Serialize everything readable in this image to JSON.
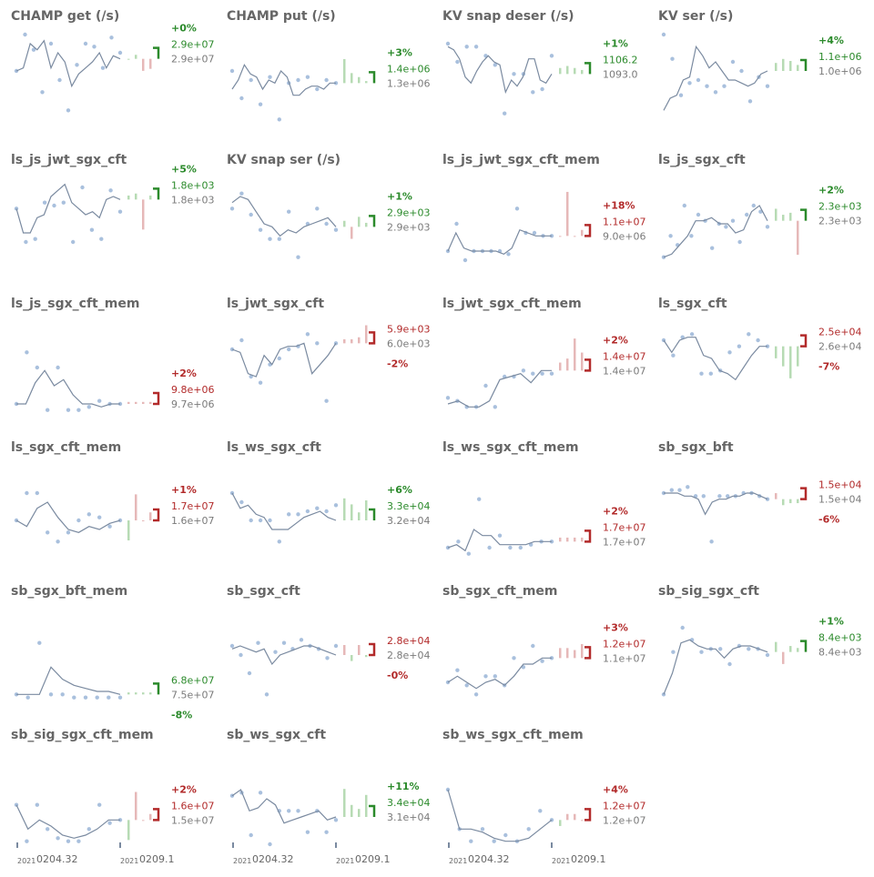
{
  "colors": {
    "title": "#666666",
    "line": "#7a8aa0",
    "dot": "#a9c0dd",
    "up": "#2b8a2b",
    "up_light": "#b7dbb4",
    "down": "#b22a2a",
    "down_light": "#e6b8b8",
    "neutral": "#7a7a7a"
  },
  "x_axis": {
    "start": {
      "year": "2021",
      "label": "0204.32"
    },
    "end": {
      "year": "2021",
      "label": "0209.1"
    }
  },
  "chart_data": [
    {
      "type": "line",
      "title": "CHAMP get (/s)",
      "direction": "up",
      "change": "+0%",
      "values": [
        18,
        19,
        27,
        25,
        28,
        19,
        24,
        21,
        13,
        17,
        19,
        21,
        24,
        19,
        23,
        22
      ],
      "dots": [
        18,
        30,
        25,
        11,
        27,
        15,
        5,
        20,
        27,
        26,
        19,
        29,
        24
      ],
      "bars": [
        0,
        2,
        -6,
        -5
      ],
      "ref_label": "2.9e+07",
      "cur_label": "2.9e+07"
    },
    {
      "type": "line",
      "title": "CHAMP put (/s)",
      "direction": "up",
      "change": "+3%",
      "values": [
        12,
        15,
        20,
        17,
        16,
        12,
        15,
        14,
        18,
        16,
        10,
        10,
        12,
        13,
        13,
        12,
        14,
        14
      ],
      "dots": [
        18,
        9,
        15,
        7,
        16,
        2,
        14,
        15,
        16,
        12,
        15,
        14
      ],
      "bars": [
        12,
        5,
        3,
        1
      ],
      "ref_label": "1.3e+06",
      "cur_label": "1.4e+06"
    },
    {
      "type": "line",
      "title": "KV snap deser (/s)",
      "direction": "up",
      "change": "+1%",
      "values": [
        26,
        25,
        22,
        16,
        14,
        18,
        21,
        23,
        21,
        20,
        11,
        15,
        13,
        16,
        22,
        22,
        15,
        14,
        17
      ],
      "dots": [
        27,
        21,
        26,
        26,
        23,
        20,
        4,
        17,
        17,
        11,
        12,
        23
      ],
      "bars": [
        3,
        4,
        3,
        2
      ],
      "ref_label": "1093.0",
      "cur_label": "1106.2"
    },
    {
      "type": "line",
      "title": "KV ser (/s)",
      "direction": "up",
      "change": "+4%",
      "values": [
        5,
        9,
        10,
        15,
        16,
        26,
        23,
        19,
        21,
        18,
        15,
        15,
        14,
        13,
        14,
        17,
        18
      ],
      "dots": [
        30,
        22,
        10,
        14,
        15,
        13,
        11,
        13,
        21,
        18,
        8,
        16,
        13
      ],
      "bars": [
        4,
        6,
        5,
        3
      ],
      "ref_label": "1.0e+06",
      "cur_label": "1.1e+06"
    },
    {
      "type": "line",
      "title": "ls_js_jwt_sgx_cft",
      "direction": "up",
      "change": "+5%",
      "values": [
        20,
        12,
        12,
        17,
        18,
        24,
        26,
        28,
        22,
        20,
        18,
        19,
        17,
        23,
        24,
        23
      ],
      "dots": [
        20,
        9,
        10,
        22,
        21,
        22,
        9,
        27,
        13,
        10,
        26,
        19
      ],
      "bars": [
        2,
        3,
        -15,
        2
      ],
      "ref_label": "1.8e+03",
      "cur_label": "1.8e+03"
    },
    {
      "type": "line",
      "title": "KV snap ser (/s)",
      "direction": "up",
      "change": "+1%",
      "values": [
        22,
        24,
        23,
        19,
        15,
        14,
        11,
        13,
        12,
        14,
        15,
        16,
        17,
        14
      ],
      "dots": [
        20,
        25,
        18,
        13,
        10,
        10,
        19,
        4,
        15,
        20,
        15,
        13
      ],
      "bars": [
        3,
        -6,
        5,
        2
      ],
      "ref_label": "2.9e+03",
      "cur_label": "2.9e+03"
    },
    {
      "type": "line",
      "title": "ls_js_jwt_sgx_cft_mem",
      "direction": "down",
      "change": "+18%",
      "values": [
        6,
        12,
        7,
        6,
        6,
        6,
        6,
        5,
        7,
        13,
        12,
        11,
        11,
        11
      ],
      "dots": [
        6,
        15,
        3,
        6,
        6,
        6,
        6,
        5,
        20,
        12,
        12,
        11,
        11
      ],
      "bars": [
        0,
        22,
        0,
        3
      ],
      "ref_label": "9.0e+06",
      "cur_label": "1.1e+07"
    },
    {
      "type": "line",
      "title": "ls_js_sgx_cft",
      "direction": "up",
      "change": "+2%",
      "values": [
        4,
        5,
        8,
        11,
        16,
        16,
        17,
        15,
        15,
        12,
        13,
        19,
        21,
        16
      ],
      "dots": [
        4,
        11,
        8,
        21,
        11,
        18,
        16,
        7,
        15,
        14,
        16,
        9,
        18,
        21,
        19,
        14
      ],
      "bars": [
        6,
        3,
        4,
        -17
      ],
      "ref_label": "2.3e+03",
      "cur_label": "2.3e+03"
    },
    {
      "type": "line",
      "title": "ls_js_sgx_cft_mem",
      "direction": "down",
      "change": "+2%",
      "values": [
        3,
        3,
        10,
        14,
        9,
        11,
        6,
        3,
        3,
        2,
        3,
        3
      ],
      "dots": [
        3,
        20,
        15,
        1,
        15,
        1,
        1,
        2,
        4,
        3,
        3
      ],
      "bars": [
        1,
        1,
        1,
        1
      ],
      "ref_label": "9.7e+06",
      "cur_label": "9.8e+06"
    },
    {
      "type": "line",
      "title": "ls_jwt_sgx_cft",
      "direction": "down",
      "change": "-2%",
      "values": [
        21,
        20,
        13,
        12,
        19,
        16,
        21,
        22,
        22,
        23,
        13,
        16,
        19,
        23
      ],
      "dots": [
        21,
        24,
        12,
        10,
        16,
        18,
        21,
        22,
        26,
        23,
        4,
        23
      ],
      "bars": [
        2,
        2,
        3,
        9
      ],
      "ref_label": "6.0e+03",
      "cur_label": "5.9e+03"
    },
    {
      "type": "line",
      "title": "ls_jwt_sgx_cft_mem",
      "direction": "down",
      "change": "+2%",
      "values": [
        3,
        4,
        2,
        2,
        4,
        11,
        12,
        13,
        10,
        14,
        14
      ],
      "dots": [
        5,
        4,
        2,
        2,
        9,
        2,
        12,
        12,
        14,
        13,
        13,
        13
      ],
      "bars": [
        4,
        6,
        16,
        9
      ],
      "ref_label": "1.4e+07",
      "cur_label": "1.4e+07"
    },
    {
      "type": "line",
      "title": "ls_sgx_cft",
      "direction": "down",
      "change": "-7%",
      "values": [
        24,
        20,
        24,
        25,
        25,
        19,
        18,
        14,
        13,
        11,
        15,
        19,
        22,
        22
      ],
      "dots": [
        24,
        19,
        25,
        26,
        13,
        13,
        14,
        20,
        22,
        26,
        24,
        22
      ],
      "bars": [
        -6,
        -10,
        -16,
        -10
      ],
      "ref_label": "2.6e+04",
      "cur_label": "2.5e+04"
    },
    {
      "type": "line",
      "title": "ls_sgx_cft_mem",
      "direction": "down",
      "change": "+1%",
      "values": [
        12,
        10,
        16,
        18,
        13,
        9,
        8,
        10,
        9,
        11,
        12
      ],
      "dots": [
        12,
        21,
        21,
        8,
        5,
        8,
        12,
        14,
        13,
        10,
        12
      ],
      "bars": [
        -10,
        13,
        0,
        4
      ],
      "ref_label": "1.6e+07",
      "cur_label": "1.7e+07"
    },
    {
      "type": "line",
      "title": "ls_ws_sgx_cft",
      "direction": "up",
      "change": "+6%",
      "values": [
        21,
        16,
        17,
        14,
        13,
        9,
        9,
        9,
        11,
        13,
        14,
        15,
        13,
        12
      ],
      "dots": [
        21,
        18,
        12,
        12,
        12,
        5,
        14,
        14,
        15,
        16,
        15,
        17
      ],
      "bars": [
        11,
        8,
        4,
        10
      ],
      "ref_label": "3.2e+04",
      "cur_label": "3.3e+04"
    },
    {
      "type": "line",
      "title": "ls_ws_sgx_cft_mem",
      "direction": "down",
      "change": "+2%",
      "values": [
        3,
        4,
        2,
        9,
        7,
        7,
        4,
        4,
        4,
        4,
        5,
        5,
        5
      ],
      "dots": [
        3,
        5,
        1,
        19,
        3,
        7,
        3,
        3,
        4,
        5,
        5
      ],
      "bars": [
        2,
        2,
        2,
        2
      ],
      "ref_label": "1.7e+07",
      "cur_label": "1.7e+07"
    },
    {
      "type": "line",
      "title": "sb_sgx_bft",
      "direction": "down",
      "change": "-6%",
      "values": [
        21,
        21,
        21,
        20,
        20,
        19,
        14,
        18,
        19,
        19,
        20,
        20,
        21,
        21,
        20,
        19
      ],
      "dots": [
        21,
        22,
        22,
        23,
        20,
        20,
        5,
        20,
        20,
        20,
        21,
        21,
        20,
        19
      ],
      "bars": [
        3,
        -3,
        -2,
        -2
      ],
      "ref_label": "1.5e+04",
      "cur_label": "1.5e+04"
    },
    {
      "type": "line",
      "title": "sb_sgx_bft_mem",
      "direction": "up",
      "change": "-8%",
      "values": [
        2,
        2,
        2,
        11,
        7,
        5,
        4,
        3,
        3,
        2
      ],
      "dots": [
        2,
        1,
        19,
        2,
        2,
        1,
        1,
        1,
        1,
        1
      ],
      "bars": [
        1,
        1,
        1,
        1
      ],
      "ref_label": "7.5e+07",
      "cur_label": "6.8e+07"
    },
    {
      "type": "line",
      "title": "sb_sgx_cft",
      "direction": "down",
      "change": "-0%",
      "values": [
        17,
        18,
        17,
        16,
        17,
        12,
        15,
        16,
        17,
        18,
        18,
        17,
        16,
        15
      ],
      "dots": [
        18,
        15,
        9,
        19,
        2,
        16,
        19,
        17,
        20,
        18,
        17,
        14,
        18
      ],
      "bars": [
        5,
        -3,
        5,
        -1
      ],
      "ref_label": "2.8e+04",
      "cur_label": "2.8e+04"
    },
    {
      "type": "line",
      "title": "sb_sgx_cft_mem",
      "direction": "down",
      "change": "+3%",
      "values": [
        6,
        8,
        6,
        4,
        6,
        7,
        5,
        8,
        12,
        12,
        14,
        14
      ],
      "dots": [
        6,
        10,
        5,
        2,
        8,
        8,
        5,
        14,
        11,
        18,
        13,
        14
      ],
      "bars": [
        5,
        5,
        4,
        7
      ],
      "ref_label": "1.1e+07",
      "cur_label": "1.2e+07"
    },
    {
      "type": "line",
      "title": "sb_sig_sgx_cft",
      "direction": "up",
      "change": "+1%",
      "values": [
        2,
        9,
        19,
        20,
        18,
        17,
        17,
        14,
        17,
        18,
        18,
        17,
        16
      ],
      "dots": [
        2,
        16,
        24,
        20,
        16,
        17,
        17,
        12,
        18,
        17,
        17,
        15
      ],
      "bars": [
        5,
        -6,
        3,
        2
      ],
      "ref_label": "8.4e+03",
      "cur_label": "8.4e+03"
    },
    {
      "type": "line",
      "title": "sb_sig_sgx_cft_mem",
      "direction": "down",
      "change": "+2%",
      "values": [
        13,
        5,
        8,
        6,
        3,
        2,
        3,
        5,
        8,
        8
      ],
      "dots": [
        13,
        1,
        13,
        5,
        2,
        1,
        1,
        5,
        13,
        7,
        8
      ],
      "bars": [
        -10,
        14,
        0,
        3
      ],
      "ref_label": "1.5e+07",
      "cur_label": "1.6e+07"
    },
    {
      "type": "line",
      "title": "sb_ws_sgx_cft",
      "direction": "up",
      "change": "+11%",
      "values": [
        16,
        18,
        11,
        12,
        15,
        13,
        7,
        8,
        9,
        10,
        11,
        8,
        9
      ],
      "dots": [
        16,
        17,
        3,
        17,
        0,
        11,
        11,
        11,
        4,
        11,
        4,
        8
      ],
      "bars": [
        14,
        6,
        4,
        11
      ],
      "ref_label": "3.1e+04",
      "cur_label": "3.4e+04"
    },
    {
      "type": "line",
      "title": "sb_ws_sgx_cft_mem",
      "direction": "down",
      "change": "+4%",
      "values": [
        18,
        5,
        5,
        4,
        2,
        1,
        1,
        2,
        5,
        8
      ],
      "dots": [
        18,
        5,
        1,
        5,
        1,
        3,
        1,
        5,
        11,
        8
      ],
      "bars": [
        -3,
        3,
        3,
        0
      ],
      "ref_label": "1.2e+07",
      "cur_label": "1.2e+07"
    }
  ]
}
